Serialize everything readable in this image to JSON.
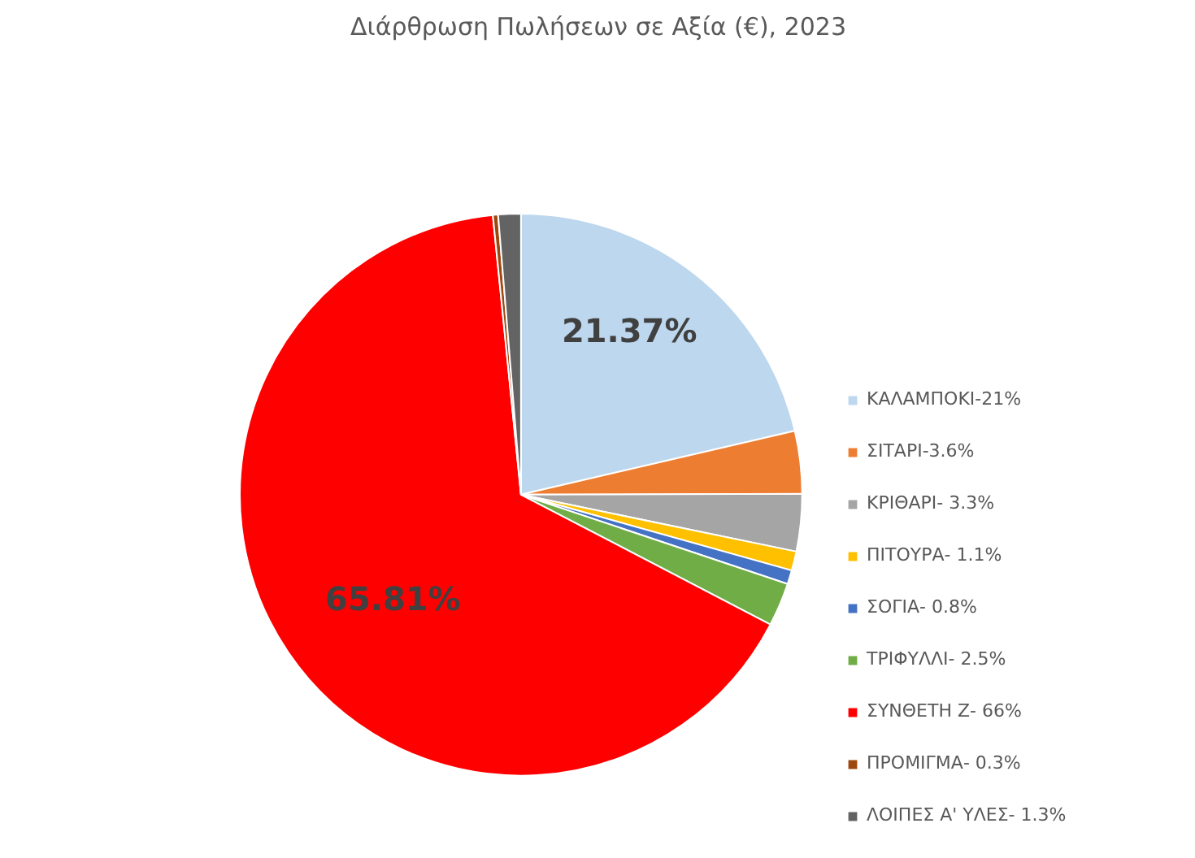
{
  "chart_data": {
    "type": "pie",
    "title": "Διάρθρωση Πωλήσεων σε Αξία (€), 2023",
    "categories": [
      "ΚΑΛΑΜΠΟΚΙ-21%",
      "ΣΙΤΑΡΙ-3.6%",
      "ΚΡΙΘΑΡΙ- 3.3%",
      "ΠΙΤΟΥΡΑ- 1.1%",
      "ΣΟΓΙΑ- 0.8%",
      "ΤΡΙΦΥΛΛΙ- 2.5%",
      "ΣΥΝΘΕΤΗ Ζ- 66%",
      "ΠΡΟΜΙΓΜΑ- 0.3%",
      "ΛΟΙΠΕΣ Α' ΥΛΕΣ- 1.3%"
    ],
    "values": [
      21.37,
      3.6,
      3.3,
      1.1,
      0.8,
      2.5,
      65.81,
      0.3,
      1.3
    ],
    "colors": [
      "#bdd7ee",
      "#ed7d31",
      "#a5a5a5",
      "#ffc000",
      "#4472c4",
      "#70ad47",
      "#ff0000",
      "#9e480e",
      "#636363"
    ],
    "value_labels": [
      "21.37%",
      null,
      null,
      null,
      null,
      null,
      "65.81%",
      null,
      null
    ],
    "legend": "right"
  }
}
